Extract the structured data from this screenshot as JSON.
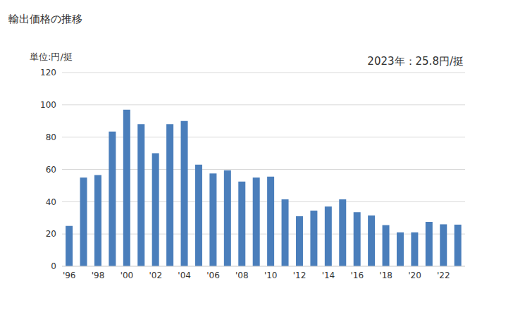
{
  "chart_data": {
    "type": "bar",
    "title": "輸出価格の推移",
    "y_label": "単位:円/挺",
    "annotation": "2023年：25.8円/挺",
    "categories": [
      "'96",
      null,
      "'98",
      null,
      "'00",
      null,
      "'02",
      null,
      "'04",
      null,
      "'06",
      null,
      "'08",
      null,
      "'10",
      null,
      "'12",
      null,
      "'14",
      null,
      "'16",
      null,
      "'18",
      null,
      "'20",
      null,
      "'22",
      null
    ],
    "values": [
      25,
      55,
      56.5,
      83.5,
      97,
      88,
      70,
      88,
      90,
      63,
      57.5,
      59.5,
      52.5,
      55,
      55.5,
      41.5,
      31,
      34.5,
      37,
      41.5,
      33.5,
      31.5,
      25.5,
      21,
      21,
      27.5,
      26,
      25.8
    ],
    "color": "#4a7ebb",
    "ylim": [
      0,
      120
    ],
    "yticks": [
      0,
      20,
      40,
      60,
      80,
      100,
      120
    ],
    "grid": true
  }
}
